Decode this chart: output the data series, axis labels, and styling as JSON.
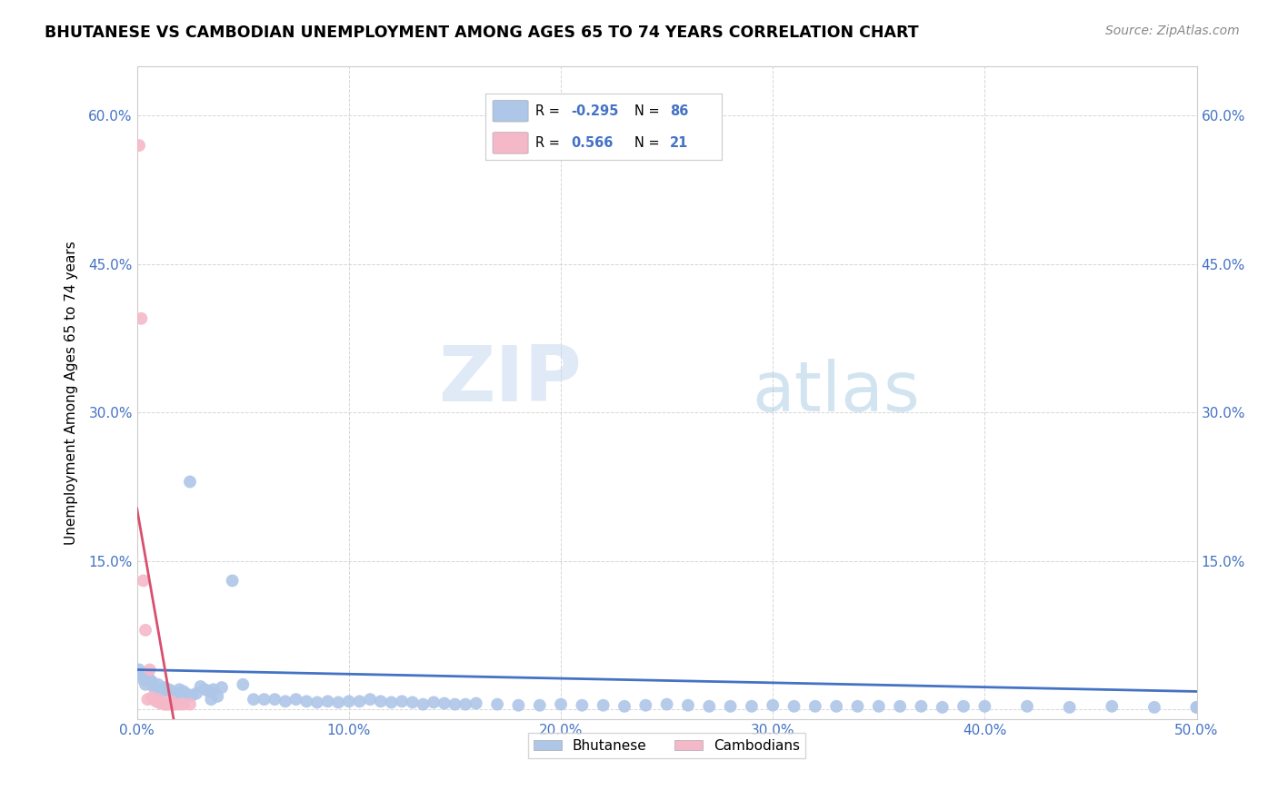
{
  "title": "BHUTANESE VS CAMBODIAN UNEMPLOYMENT AMONG AGES 65 TO 74 YEARS CORRELATION CHART",
  "source": "Source: ZipAtlas.com",
  "ylabel": "Unemployment Among Ages 65 to 74 years",
  "xlim": [
    0.0,
    0.5
  ],
  "ylim": [
    -0.01,
    0.65
  ],
  "xticks": [
    0.0,
    0.1,
    0.2,
    0.3,
    0.4,
    0.5
  ],
  "xtick_labels": [
    "0.0%",
    "10.0%",
    "20.0%",
    "30.0%",
    "40.0%",
    "50.0%"
  ],
  "yticks": [
    0.0,
    0.15,
    0.3,
    0.45,
    0.6
  ],
  "ytick_labels": [
    "",
    "15.0%",
    "30.0%",
    "45.0%",
    "60.0%"
  ],
  "blue_color": "#aec6e8",
  "blue_line_color": "#4472C4",
  "pink_color": "#f4b8c8",
  "pink_line_color": "#d94f6e",
  "watermark_zip": "ZIP",
  "watermark_atlas": "atlas",
  "bhutanese_x": [
    0.001,
    0.002,
    0.003,
    0.004,
    0.005,
    0.006,
    0.007,
    0.008,
    0.009,
    0.01,
    0.011,
    0.012,
    0.013,
    0.014,
    0.015,
    0.016,
    0.017,
    0.018,
    0.019,
    0.02,
    0.022,
    0.024,
    0.026,
    0.028,
    0.03,
    0.032,
    0.034,
    0.036,
    0.038,
    0.04,
    0.045,
    0.05,
    0.055,
    0.06,
    0.065,
    0.07,
    0.075,
    0.08,
    0.085,
    0.09,
    0.095,
    0.1,
    0.105,
    0.11,
    0.115,
    0.12,
    0.125,
    0.13,
    0.135,
    0.14,
    0.145,
    0.15,
    0.155,
    0.16,
    0.17,
    0.18,
    0.19,
    0.2,
    0.21,
    0.22,
    0.23,
    0.24,
    0.25,
    0.26,
    0.27,
    0.28,
    0.29,
    0.3,
    0.31,
    0.32,
    0.33,
    0.34,
    0.35,
    0.36,
    0.37,
    0.38,
    0.39,
    0.4,
    0.42,
    0.44,
    0.46,
    0.48,
    0.5,
    0.025,
    0.035,
    0.5
  ],
  "bhutanese_y": [
    0.04,
    0.035,
    0.03,
    0.025,
    0.035,
    0.03,
    0.028,
    0.022,
    0.02,
    0.025,
    0.02,
    0.018,
    0.022,
    0.02,
    0.02,
    0.018,
    0.018,
    0.016,
    0.015,
    0.02,
    0.018,
    0.015,
    0.014,
    0.016,
    0.023,
    0.02,
    0.018,
    0.02,
    0.013,
    0.022,
    0.13,
    0.025,
    0.01,
    0.01,
    0.01,
    0.008,
    0.01,
    0.008,
    0.007,
    0.008,
    0.007,
    0.008,
    0.008,
    0.01,
    0.008,
    0.007,
    0.008,
    0.007,
    0.005,
    0.007,
    0.006,
    0.005,
    0.005,
    0.006,
    0.005,
    0.004,
    0.004,
    0.005,
    0.004,
    0.004,
    0.003,
    0.004,
    0.005,
    0.004,
    0.003,
    0.003,
    0.003,
    0.004,
    0.003,
    0.003,
    0.003,
    0.003,
    0.003,
    0.003,
    0.003,
    0.002,
    0.003,
    0.003,
    0.003,
    0.002,
    0.003,
    0.002,
    0.002,
    0.23,
    0.01,
    0.002
  ],
  "cambodian_x": [
    0.001,
    0.002,
    0.003,
    0.004,
    0.005,
    0.006,
    0.007,
    0.008,
    0.009,
    0.01,
    0.011,
    0.012,
    0.013,
    0.014,
    0.015,
    0.016,
    0.017,
    0.018,
    0.02,
    0.022,
    0.025
  ],
  "cambodian_y": [
    0.57,
    0.395,
    0.13,
    0.08,
    0.01,
    0.04,
    0.012,
    0.01,
    0.008,
    0.01,
    0.006,
    0.007,
    0.005,
    0.005,
    0.005,
    0.008,
    0.005,
    0.005,
    0.005,
    0.005,
    0.005
  ],
  "legend_text_color": "#4472C4",
  "bhutanese_label": "Bhutanese",
  "cambodian_label": "Cambodians"
}
